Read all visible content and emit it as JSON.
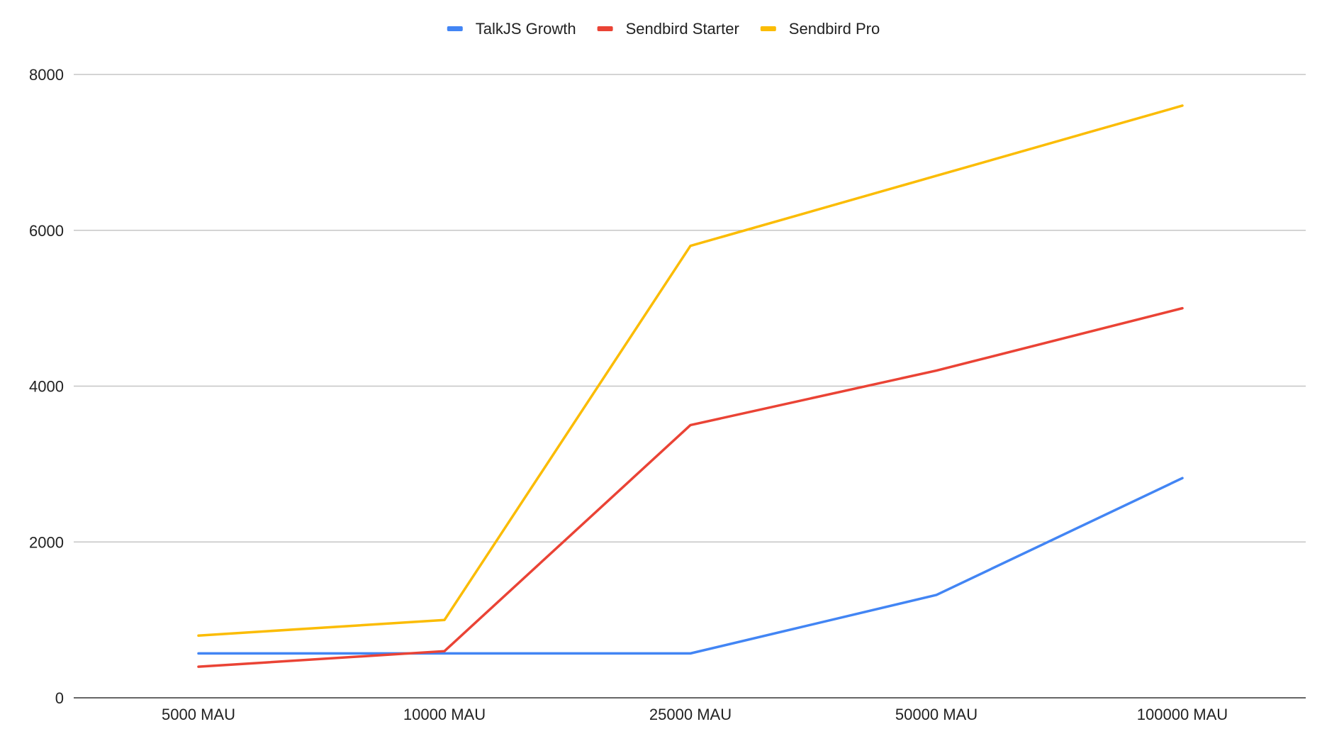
{
  "chart_data": {
    "type": "line",
    "title": "",
    "xlabel": "",
    "ylabel": "",
    "categories": [
      "5000 MAU",
      "10000 MAU",
      "25000 MAU",
      "50000 MAU",
      "100000 MAU"
    ],
    "ylim": [
      0,
      8000
    ],
    "yticks": [
      0,
      2000,
      4000,
      6000,
      8000
    ],
    "grid": true,
    "legend_position": "top-center",
    "series": [
      {
        "name": "TalkJS Growth",
        "color": "#4285F4",
        "values": [
          570,
          570,
          570,
          1320,
          2820
        ]
      },
      {
        "name": "Sendbird Starter",
        "color": "#EA4335",
        "values": [
          399,
          599,
          3500,
          4200,
          5000
        ]
      },
      {
        "name": "Sendbird Pro",
        "color": "#FBBC04",
        "values": [
          799,
          999,
          5800,
          6700,
          7600
        ]
      }
    ]
  }
}
